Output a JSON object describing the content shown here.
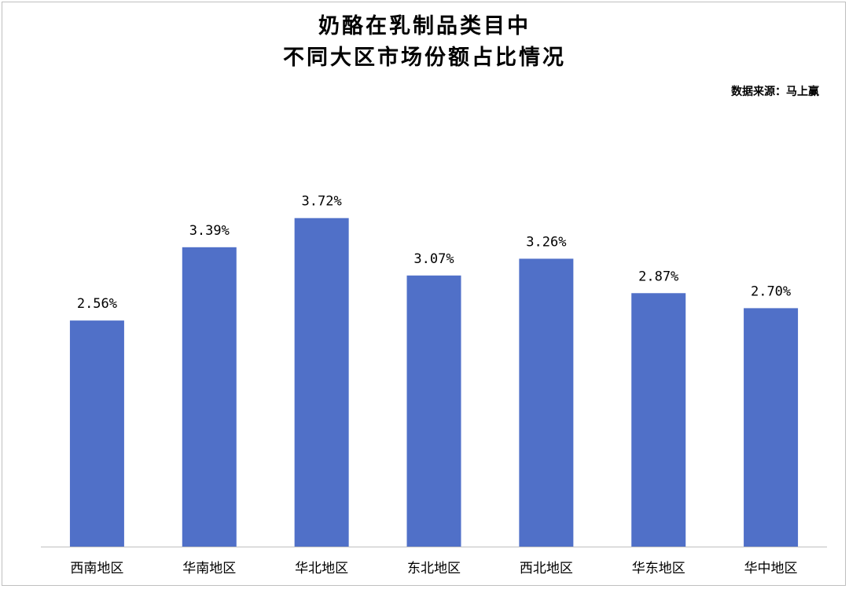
{
  "chart_data": {
    "type": "bar",
    "title_lines": [
      "奶酪在乳制品类目中",
      "不同大区市场份额占比情况"
    ],
    "source": "数据来源：马上赢",
    "categories": [
      "西南地区",
      "华南地区",
      "华北地区",
      "东北地区",
      "西北地区",
      "华东地区",
      "华中地区"
    ],
    "values": [
      2.56,
      3.39,
      3.72,
      3.07,
      3.26,
      2.87,
      2.7
    ],
    "data_labels": [
      "2.56%",
      "3.39%",
      "3.72%",
      "3.07%",
      "3.26%",
      "2.87%",
      "2.70%"
    ],
    "ylim": [
      0,
      4.5
    ],
    "grid": false,
    "legend": "none",
    "bar_color": "#5070c8"
  }
}
